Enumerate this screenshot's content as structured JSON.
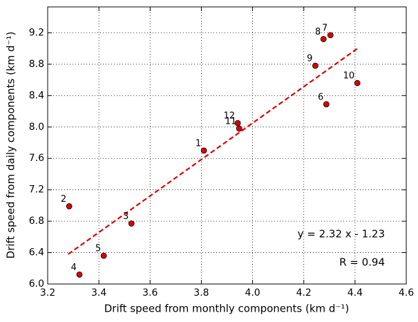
{
  "chart_data": {
    "type": "scatter",
    "xlabel": "Drift speed from monthly components (km d⁻¹)",
    "ylabel": "Drift speed from daily components (km d⁻¹)",
    "x": [
      3.81,
      3.284,
      3.527,
      3.324,
      3.419,
      4.288,
      4.304,
      4.277,
      4.245,
      4.409,
      3.948,
      3.942
    ],
    "values": [
      7.7,
      6.99,
      6.77,
      6.12,
      6.36,
      8.29,
      9.17,
      9.12,
      8.78,
      8.56,
      7.98,
      8.05
    ],
    "labels": [
      "1",
      "2",
      "3",
      "4",
      "5",
      "6",
      "7",
      "8",
      "9",
      "10",
      "11",
      "12"
    ],
    "color": "#dd0000",
    "fit": {
      "slope": 2.32,
      "intercept": -1.23,
      "x_range": [
        3.28,
        4.41
      ],
      "color": "#dd0000"
    },
    "annotations": [
      "y = 2.32 x - 1.23",
      "R = 0.94"
    ],
    "xlim": [
      3.2,
      4.6
    ],
    "xticks": [
      3.2,
      3.4,
      3.6,
      3.8,
      {
        "value": 4.0,
        "label": "4.0"
      },
      4.2,
      4.4,
      4.6
    ],
    "ylim": [
      6.0,
      9.53
    ],
    "yticks": [
      {
        "value": 6.0,
        "label": "6.0"
      },
      6.4,
      6.8,
      7.2,
      7.6,
      {
        "value": 8.0,
        "label": "8.0"
      },
      8.4,
      8.8,
      9.2
    ],
    "grid": true
  }
}
